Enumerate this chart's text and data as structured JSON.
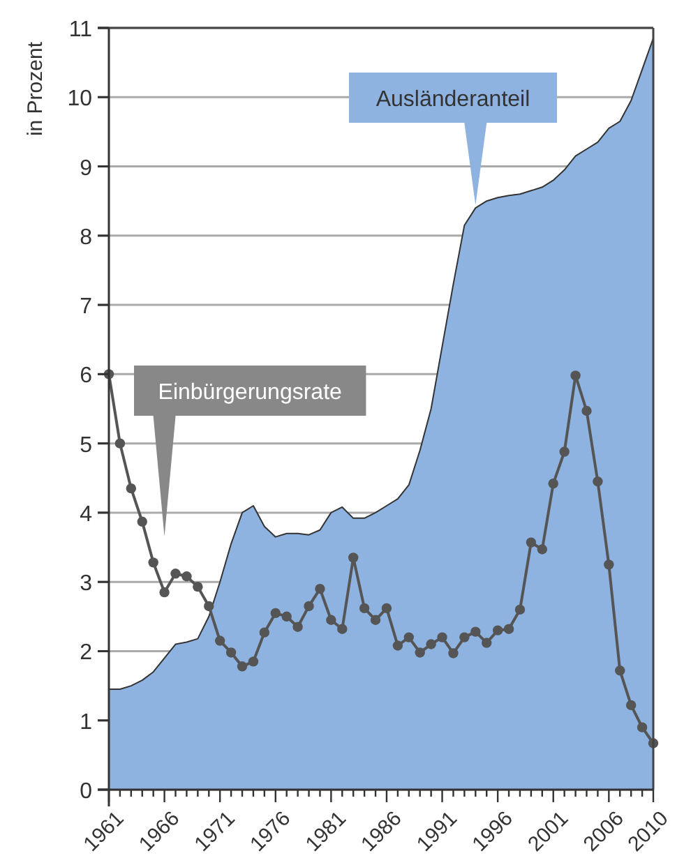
{
  "chart_data": {
    "type": "line",
    "ylabel": "in Prozent",
    "x": [
      1961,
      1962,
      1963,
      1964,
      1965,
      1966,
      1967,
      1968,
      1969,
      1970,
      1971,
      1972,
      1973,
      1974,
      1975,
      1976,
      1977,
      1978,
      1979,
      1980,
      1981,
      1982,
      1983,
      1984,
      1985,
      1986,
      1987,
      1988,
      1989,
      1990,
      1991,
      1992,
      1993,
      1994,
      1995,
      1996,
      1997,
      1998,
      1999,
      2000,
      2001,
      2002,
      2003,
      2004,
      2005,
      2006,
      2007,
      2008,
      2009,
      2010
    ],
    "series": [
      {
        "name": "Ausländeranteil",
        "type": "area",
        "color": "#8fb3e0",
        "values": [
          1.45,
          1.45,
          1.5,
          1.58,
          1.7,
          1.9,
          2.1,
          2.13,
          2.18,
          2.5,
          3.0,
          3.55,
          4.0,
          4.1,
          3.8,
          3.65,
          3.7,
          3.7,
          3.68,
          3.75,
          4.0,
          4.08,
          3.92,
          3.92,
          4.0,
          4.1,
          4.2,
          4.4,
          4.9,
          5.5,
          6.4,
          7.3,
          8.15,
          8.4,
          8.5,
          8.55,
          8.58,
          8.6,
          8.65,
          8.7,
          8.8,
          8.95,
          9.15,
          9.25,
          9.35,
          9.55,
          9.65,
          9.95,
          10.4,
          10.85
        ]
      },
      {
        "name": "Einbürgerungsrate",
        "color": "#555555",
        "marker": "circle",
        "values": [
          6.0,
          5.0,
          4.35,
          3.87,
          3.28,
          2.85,
          3.12,
          3.08,
          2.93,
          2.65,
          2.15,
          1.98,
          1.78,
          1.85,
          2.27,
          2.55,
          2.5,
          2.35,
          2.65,
          2.9,
          2.45,
          2.32,
          3.35,
          2.62,
          2.45,
          2.62,
          2.08,
          2.2,
          1.98,
          2.1,
          2.2,
          1.97,
          2.2,
          2.28,
          2.12,
          2.3,
          2.32,
          2.6,
          3.57,
          3.47,
          4.42,
          4.88,
          5.98,
          5.47,
          4.45,
          3.25,
          1.72,
          1.22,
          0.9,
          0.67
        ]
      }
    ],
    "xlim": [
      1961,
      2010
    ],
    "xticks": [
      1961,
      {
        "value": 1962,
        "label": null
      },
      {
        "value": 1963,
        "label": null
      },
      {
        "value": 1964,
        "label": null
      },
      {
        "value": 1965,
        "label": null
      },
      1966,
      {
        "value": 1967,
        "label": null
      },
      {
        "value": 1968,
        "label": null
      },
      {
        "value": 1969,
        "label": null
      },
      {
        "value": 1970,
        "label": null
      },
      1971,
      {
        "value": 1972,
        "label": null
      },
      {
        "value": 1973,
        "label": null
      },
      {
        "value": 1974,
        "label": null
      },
      {
        "value": 1975,
        "label": null
      },
      1976,
      {
        "value": 1977,
        "label": null
      },
      {
        "value": 1978,
        "label": null
      },
      {
        "value": 1979,
        "label": null
      },
      {
        "value": 1980,
        "label": null
      },
      1981,
      {
        "value": 1982,
        "label": null
      },
      {
        "value": 1983,
        "label": null
      },
      {
        "value": 1984,
        "label": null
      },
      {
        "value": 1985,
        "label": null
      },
      1986,
      {
        "value": 1987,
        "label": null
      },
      {
        "value": 1988,
        "label": null
      },
      {
        "value": 1989,
        "label": null
      },
      {
        "value": 1990,
        "label": null
      },
      1991,
      {
        "value": 1992,
        "label": null
      },
      {
        "value": 1993,
        "label": null
      },
      {
        "value": 1994,
        "label": null
      },
      {
        "value": 1995,
        "label": null
      },
      1996,
      {
        "value": 1997,
        "label": null
      },
      {
        "value": 1998,
        "label": null
      },
      {
        "value": 1999,
        "label": null
      },
      {
        "value": 2000,
        "label": null
      },
      2001,
      {
        "value": 2002,
        "label": null
      },
      {
        "value": 2003,
        "label": null
      },
      {
        "value": 2004,
        "label": null
      },
      {
        "value": 2005,
        "label": null
      },
      2006,
      {
        "value": 2007,
        "label": null
      },
      {
        "value": 2008,
        "label": null
      },
      {
        "value": 2009,
        "label": null
      },
      2010
    ],
    "ylim": [
      0,
      11
    ],
    "yticks": [
      0,
      1,
      2,
      3,
      4,
      5,
      6,
      7,
      8,
      9,
      10,
      11
    ],
    "grid": "y"
  }
}
